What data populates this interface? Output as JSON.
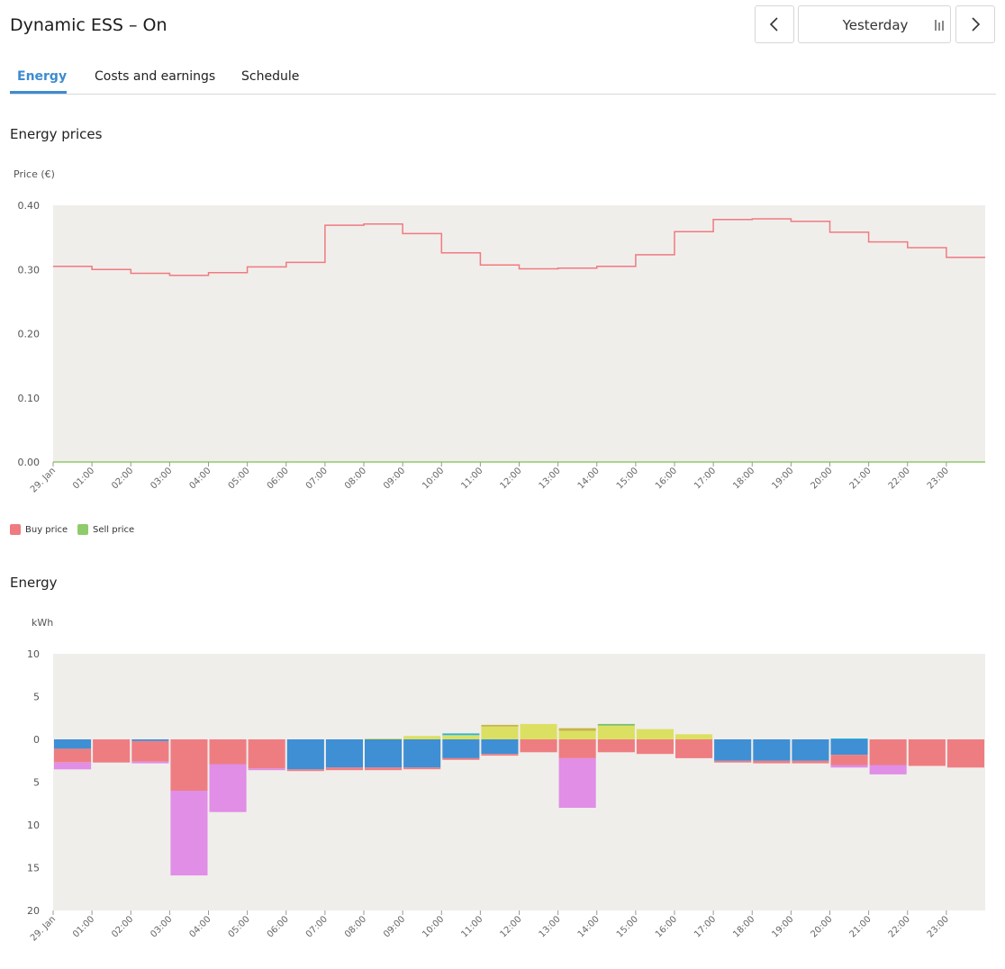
{
  "header": {
    "title": "Dynamic ESS – On",
    "date_label": "Yesterday"
  },
  "tabs": [
    {
      "label": "Energy",
      "active": true
    },
    {
      "label": "Costs and earnings",
      "active": false
    },
    {
      "label": "Schedule",
      "active": false
    }
  ],
  "colors": {
    "accent": "#3d8bd0",
    "buy": "#ef7b80",
    "sell": "#8fcb6b",
    "plot_bg": "#f0eeeb",
    "battery": "#3f8fd4",
    "solar": "#dce062",
    "solar_dark": "#c8b44a",
    "grid_red": "#ee7d82",
    "pink": "#e08ee6",
    "cyan": "#2ab7d6",
    "green": "#7cc06a"
  },
  "prices": {
    "section_title": "Energy prices",
    "unit_label": "Price (€)",
    "legend": [
      {
        "name": "Buy price",
        "color": "#ef7b80"
      },
      {
        "name": "Sell price",
        "color": "#8fcb6b"
      }
    ],
    "chart_data": {
      "type": "line",
      "step": true,
      "x_labels": [
        "29. Jan",
        "01:00",
        "02:00",
        "03:00",
        "04:00",
        "05:00",
        "06:00",
        "07:00",
        "08:00",
        "09:00",
        "10:00",
        "11:00",
        "12:00",
        "13:00",
        "14:00",
        "15:00",
        "16:00",
        "17:00",
        "18:00",
        "19:00",
        "20:00",
        "21:00",
        "22:00",
        "23:00"
      ],
      "y_ticks": [
        "0.00",
        "0.10",
        "0.20",
        "0.30",
        "0.40"
      ],
      "ylim": [
        0,
        0.4
      ],
      "series": [
        {
          "name": "Buy price",
          "color": "#ef7b80",
          "values": [
            0.305,
            0.3,
            0.294,
            0.291,
            0.295,
            0.304,
            0.311,
            0.369,
            0.371,
            0.356,
            0.326,
            0.307,
            0.301,
            0.302,
            0.305,
            0.323,
            0.359,
            0.378,
            0.379,
            0.375,
            0.358,
            0.343,
            0.334,
            0.319
          ]
        },
        {
          "name": "Sell price",
          "color": "#8fcb6b",
          "values": [
            0,
            0,
            0,
            0,
            0,
            0,
            0,
            0,
            0,
            0,
            0,
            0,
            0,
            0,
            0,
            0,
            0,
            0,
            0,
            0,
            0,
            0,
            0,
            0
          ]
        }
      ]
    }
  },
  "energy": {
    "section_title": "Energy",
    "unit_label": "kWh",
    "chart_data": {
      "type": "bar",
      "stacked": true,
      "x_labels": [
        "29. Jan",
        "01:00",
        "02:00",
        "03:00",
        "04:00",
        "05:00",
        "06:00",
        "07:00",
        "08:00",
        "09:00",
        "10:00",
        "11:00",
        "12:00",
        "13:00",
        "14:00",
        "15:00",
        "16:00",
        "17:00",
        "18:00",
        "19:00",
        "20:00",
        "21:00",
        "22:00",
        "23:00"
      ],
      "y_ticks": [
        {
          "value": 10,
          "label": "10"
        },
        {
          "value": 5,
          "label": "5"
        },
        {
          "value": 0,
          "label": "0"
        },
        {
          "value": -5,
          "label": "5"
        },
        {
          "value": -10,
          "label": "10"
        },
        {
          "value": -15,
          "label": "15"
        },
        {
          "value": -20,
          "label": "20"
        }
      ],
      "ylim": [
        -20,
        10
      ],
      "bars": [
        [
          {
            "value": -1.1,
            "color": "#3f8fd4"
          },
          {
            "value": -1.6,
            "color": "#ee7d82"
          },
          {
            "value": -0.8,
            "color": "#e08ee6"
          }
        ],
        [
          {
            "value": -2.7,
            "color": "#ee7d82"
          }
        ],
        [
          {
            "value": -0.2,
            "color": "#3f8fd4"
          },
          {
            "value": -2.4,
            "color": "#ee7d82"
          },
          {
            "value": -0.2,
            "color": "#e08ee6"
          }
        ],
        [
          {
            "value": -6.0,
            "color": "#ee7d82"
          },
          {
            "value": -9.9,
            "color": "#e08ee6"
          }
        ],
        [
          {
            "value": -2.9,
            "color": "#ee7d82"
          },
          {
            "value": -5.6,
            "color": "#e08ee6"
          }
        ],
        [
          {
            "value": -3.4,
            "color": "#ee7d82"
          },
          {
            "value": -0.2,
            "color": "#e08ee6"
          }
        ],
        [
          {
            "value": -3.5,
            "color": "#3f8fd4"
          },
          {
            "value": -0.2,
            "color": "#ee7d82"
          }
        ],
        [
          {
            "value": -3.3,
            "color": "#3f8fd4"
          },
          {
            "value": -0.3,
            "color": "#ee7d82"
          }
        ],
        [
          {
            "value": 0.1,
            "color": "#dce062"
          },
          {
            "value": -3.3,
            "color": "#3f8fd4"
          },
          {
            "value": -0.3,
            "color": "#ee7d82"
          }
        ],
        [
          {
            "value": 0.4,
            "color": "#dce062"
          },
          {
            "value": -3.3,
            "color": "#3f8fd4"
          },
          {
            "value": -0.2,
            "color": "#ee7d82"
          }
        ],
        [
          {
            "value": 0.5,
            "color": "#dce062"
          },
          {
            "value": 0.2,
            "color": "#2ab7d6"
          },
          {
            "value": -2.2,
            "color": "#3f8fd4"
          },
          {
            "value": -0.2,
            "color": "#ee7d82"
          }
        ],
        [
          {
            "value": 1.5,
            "color": "#dce062"
          },
          {
            "value": 0.2,
            "color": "#c8b44a"
          },
          {
            "value": -1.7,
            "color": "#3f8fd4"
          },
          {
            "value": -0.2,
            "color": "#ee7d82"
          }
        ],
        [
          {
            "value": 1.8,
            "color": "#dce062"
          },
          {
            "value": -1.5,
            "color": "#ee7d82"
          }
        ],
        [
          {
            "value": 1.0,
            "color": "#dce062"
          },
          {
            "value": 0.3,
            "color": "#c8b44a"
          },
          {
            "value": -2.2,
            "color": "#ee7d82"
          },
          {
            "value": -5.8,
            "color": "#e08ee6"
          }
        ],
        [
          {
            "value": 1.6,
            "color": "#dce062"
          },
          {
            "value": 0.2,
            "color": "#7cc06a"
          },
          {
            "value": -1.5,
            "color": "#ee7d82"
          }
        ],
        [
          {
            "value": 1.2,
            "color": "#dce062"
          },
          {
            "value": -1.7,
            "color": "#ee7d82"
          }
        ],
        [
          {
            "value": 0.6,
            "color": "#dce062"
          },
          {
            "value": -2.2,
            "color": "#ee7d82"
          }
        ],
        [
          {
            "value": -2.5,
            "color": "#3f8fd4"
          },
          {
            "value": -0.2,
            "color": "#ee7d82"
          }
        ],
        [
          {
            "value": -2.5,
            "color": "#3f8fd4"
          },
          {
            "value": -0.3,
            "color": "#ee7d82"
          }
        ],
        [
          {
            "value": -2.5,
            "color": "#3f8fd4"
          },
          {
            "value": -0.3,
            "color": "#ee7d82"
          }
        ],
        [
          {
            "value": 0.1,
            "color": "#2ab7d6"
          },
          {
            "value": -1.8,
            "color": "#3f8fd4"
          },
          {
            "value": -1.2,
            "color": "#ee7d82"
          },
          {
            "value": -0.3,
            "color": "#e08ee6"
          }
        ],
        [
          {
            "value": -3.0,
            "color": "#ee7d82"
          },
          {
            "value": -1.1,
            "color": "#e08ee6"
          }
        ],
        [
          {
            "value": -3.1,
            "color": "#ee7d82"
          }
        ],
        [
          {
            "value": -3.3,
            "color": "#ee7d82"
          }
        ]
      ]
    }
  }
}
